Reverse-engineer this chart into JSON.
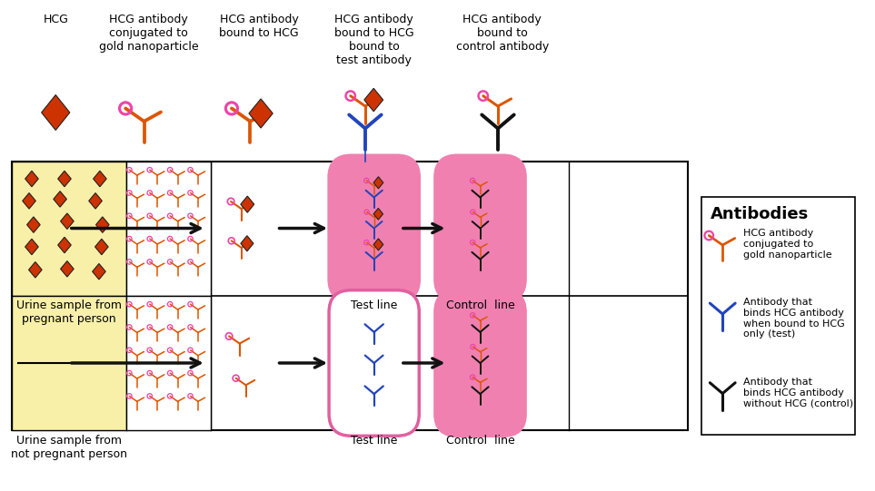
{
  "bg_color": "#ffffff",
  "hcg_color": "#cc3300",
  "antibody_orange": "#dd5500",
  "antibody_pink": "#ee44aa",
  "antibody_blue": "#2244bb",
  "antibody_black": "#111111",
  "pink_fill": "#f080b0",
  "yellow_fill": "#f8f0a8",
  "arrow_color": "#111111",
  "legend_title": "Antibodies",
  "row1_label": "Urine sample from\npregnant person",
  "row2_label": "Urine sample from\nnot pregnant person",
  "testline_label": "Test line",
  "controlline_label": "Control  line",
  "top_label1": "HCG",
  "top_label2": "HCG antibody\nconjugated to\ngold nanoparticle",
  "top_label3": "HCG antibody\nbound to HCG",
  "top_label4": "HCG antibody\nbound to HCG\nbound to\ntest antibody",
  "top_label5": "HCG antibody\nbound to\ncontrol antibody",
  "leg_label1": "HCG antibody\nconjugated to\ngold nanoparticle",
  "leg_label2": "Antibody that\nbinds HCG antibody\nwhen bound to HCG\nonly (test)",
  "leg_label3": "Antibody that\nbinds HCG antibody\nwithout HCG (control)"
}
